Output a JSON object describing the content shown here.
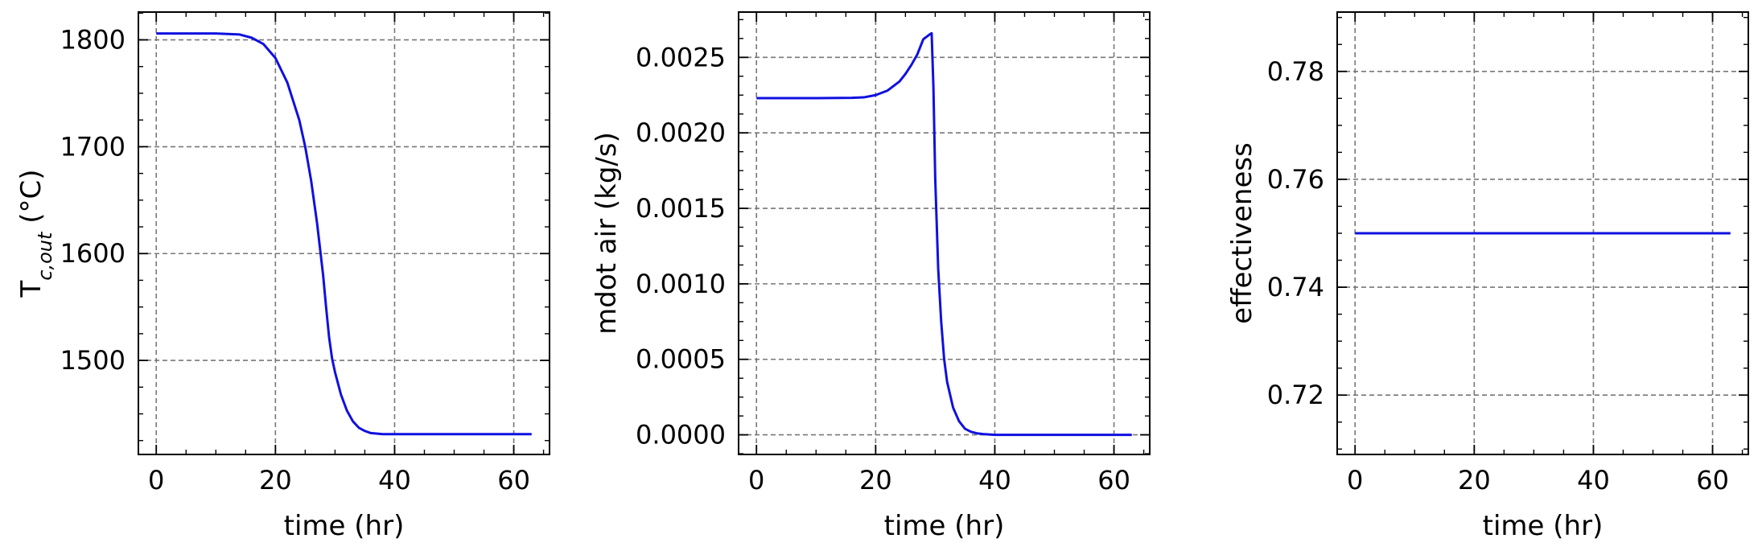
{
  "chart_data": [
    {
      "type": "line",
      "xlabel": "time (hr)",
      "ylabel": "T",
      "ylabel_sub": "c,out",
      "ylabel_suffix": " (°C)",
      "xlim": [
        -3,
        66
      ],
      "ylim": [
        1412,
        1826
      ],
      "xticks": [
        0,
        20,
        40,
        60
      ],
      "xtick_labels": [
        "0",
        "20",
        "40",
        "60"
      ],
      "yticks": [
        1500,
        1600,
        1700,
        1800
      ],
      "ytick_labels": [
        "1500",
        "1600",
        "1700",
        "1800"
      ],
      "grid": true,
      "series": [
        {
          "color": "#1010e0",
          "x": [
            0,
            5,
            10,
            14,
            16,
            18,
            20,
            22,
            24,
            25,
            26,
            27,
            28,
            28.5,
            29,
            29.5,
            30,
            31,
            32,
            33,
            34,
            35,
            36,
            38,
            40,
            50,
            63
          ],
          "y": [
            1806,
            1806,
            1806,
            1805,
            1802,
            1796,
            1783,
            1760,
            1725,
            1700,
            1668,
            1628,
            1580,
            1550,
            1522,
            1502,
            1489,
            1468,
            1453,
            1443,
            1437,
            1434,
            1432,
            1431,
            1431,
            1431,
            1431
          ]
        }
      ]
    },
    {
      "type": "line",
      "xlabel": "time (hr)",
      "ylabel": "mdot air (kg/s)",
      "xlim": [
        -3,
        66
      ],
      "ylim": [
        -0.00013,
        0.0028
      ],
      "xticks": [
        0,
        20,
        40,
        60
      ],
      "xtick_labels": [
        "0",
        "20",
        "40",
        "60"
      ],
      "yticks": [
        0.0,
        0.0005,
        0.001,
        0.0015,
        0.002,
        0.0025
      ],
      "ytick_labels": [
        "0.0000",
        "0.0005",
        "0.0010",
        "0.0015",
        "0.0020",
        "0.0025"
      ],
      "grid": true,
      "series": [
        {
          "color": "#1010e0",
          "x": [
            0,
            10,
            16,
            18,
            20,
            22,
            24,
            25,
            26,
            27,
            28,
            29,
            29.4,
            29.7,
            30,
            30.5,
            31,
            31.5,
            32,
            33,
            34,
            35,
            36,
            37,
            38,
            40,
            50,
            63
          ],
          "y": [
            0.00223,
            0.00223,
            0.002232,
            0.002235,
            0.00225,
            0.00228,
            0.00234,
            0.00239,
            0.00245,
            0.00252,
            0.00262,
            0.00265,
            0.00266,
            0.0023,
            0.0017,
            0.0011,
            0.00075,
            0.0005,
            0.00035,
            0.00018,
            9e-05,
            4e-05,
            2e-05,
            1e-05,
            5e-06,
            0.0,
            0.0,
            0.0
          ]
        }
      ]
    },
    {
      "type": "line",
      "xlabel": "time (hr)",
      "ylabel": "effectiveness",
      "xlim": [
        -3,
        66
      ],
      "ylim": [
        0.709,
        0.791
      ],
      "xticks": [
        0,
        20,
        40,
        60
      ],
      "xtick_labels": [
        "0",
        "20",
        "40",
        "60"
      ],
      "yticks": [
        0.72,
        0.74,
        0.76,
        0.78
      ],
      "ytick_labels": [
        "0.72",
        "0.74",
        "0.76",
        "0.78"
      ],
      "grid": true,
      "series": [
        {
          "color": "#1010e0",
          "x": [
            0,
            63
          ],
          "y": [
            0.75,
            0.75
          ]
        }
      ]
    }
  ]
}
